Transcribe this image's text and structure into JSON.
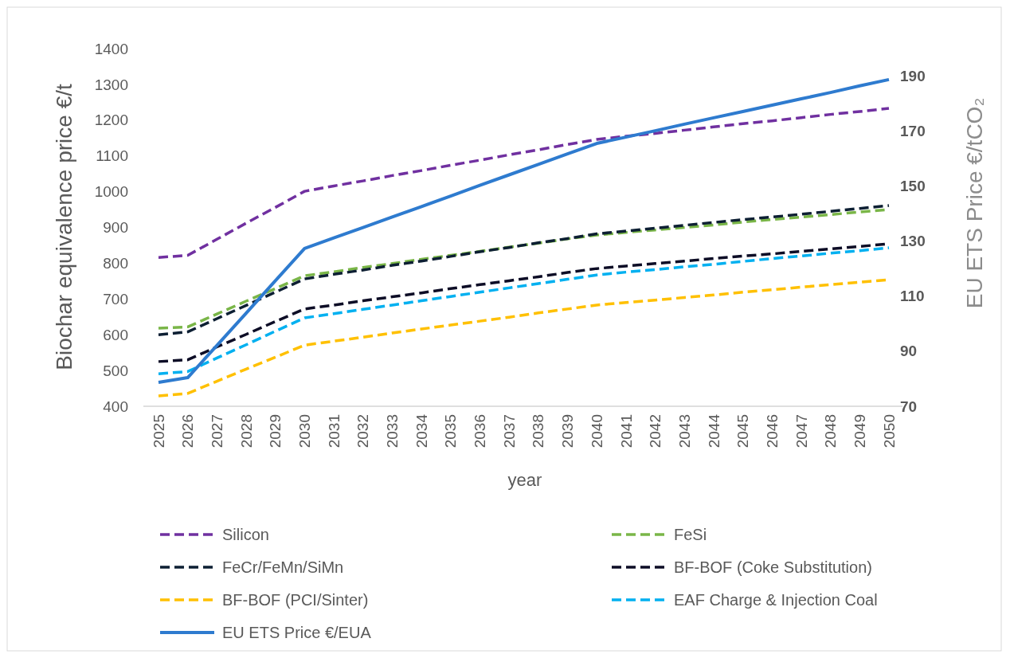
{
  "chart_data": {
    "type": "line",
    "xlabel": "year",
    "ylabel": "Biochar equivalence price €/t",
    "y2label": "EU ETS Price €/tCO₂",
    "categories": [
      "2025",
      "2026",
      "2027",
      "2028",
      "2029",
      "2030",
      "2031",
      "2032",
      "2033",
      "2034",
      "2035",
      "2036",
      "2037",
      "2038",
      "2039",
      "2040",
      "2041",
      "2042",
      "2043",
      "2044",
      "2045",
      "2046",
      "2047",
      "2048",
      "2049",
      "2050"
    ],
    "ylim": [
      400,
      1400
    ],
    "yticks": [
      400,
      500,
      600,
      700,
      800,
      900,
      1000,
      1100,
      1200,
      1300,
      1400
    ],
    "y2lim": [
      70,
      190
    ],
    "y2ticks": [
      70,
      90,
      110,
      130,
      150,
      170,
      190
    ],
    "grid": false,
    "legend": "bottom",
    "marker": "none",
    "series": [
      {
        "name": "Silicon",
        "color": "#7030a0",
        "line_style": "dashed",
        "values": [
          816,
          822,
          867,
          912,
          956,
          1001,
          1016,
          1030,
          1045,
          1059,
          1074,
          1088,
          1103,
          1117,
          1132,
          1146,
          1155,
          1163,
          1172,
          1181,
          1190,
          1198,
          1207,
          1216,
          1224,
          1233
        ]
      },
      {
        "name": "FeSi",
        "color": "#7ab648",
        "line_style": "dashed",
        "values": [
          618,
          622,
          658,
          694,
          729,
          765,
          776,
          788,
          799,
          811,
          822,
          833,
          845,
          856,
          868,
          879,
          886,
          893,
          900,
          907,
          915,
          922,
          929,
          936,
          943,
          950
        ]
      },
      {
        "name": "FeCr/FeMn/SiMn",
        "color": "#0d1f33",
        "line_style": "dashed",
        "values": [
          600,
          608,
          645,
          682,
          719,
          756,
          769,
          781,
          794,
          806,
          819,
          832,
          844,
          857,
          869,
          882,
          890,
          898,
          906,
          914,
          922,
          929,
          937,
          945,
          953,
          961
        ]
      },
      {
        "name": "BF-BOF (Coke Substitution)",
        "color": "#0d0d26",
        "line_style": "dashed",
        "values": [
          525,
          530,
          566,
          601,
          637,
          672,
          683,
          695,
          706,
          717,
          729,
          740,
          751,
          762,
          774,
          785,
          792,
          799,
          806,
          813,
          820,
          826,
          833,
          840,
          847,
          854
        ]
      },
      {
        "name": "BF-BOF (PCI/Sinter)",
        "color": "#ffc000",
        "line_style": "dashed",
        "values": [
          429,
          436,
          470,
          504,
          537,
          571,
          582,
          593,
          605,
          616,
          627,
          638,
          649,
          661,
          672,
          683,
          690,
          697,
          704,
          711,
          719,
          726,
          733,
          740,
          747,
          754
        ]
      },
      {
        "name": "EAF Charge & Injection Coal",
        "color": "#00b0f0",
        "line_style": "dashed",
        "values": [
          491,
          497,
          535,
          572,
          610,
          647,
          659,
          671,
          683,
          695,
          707,
          719,
          731,
          743,
          755,
          767,
          775,
          782,
          790,
          797,
          805,
          813,
          820,
          828,
          835,
          843
        ]
      },
      {
        "name": "EU ETS Price €/EUA",
        "color": "#2e7bcf",
        "line_style": "solid",
        "axis": "y2",
        "values": [
          78.7,
          80.4,
          92.1,
          103.8,
          115.6,
          127.3,
          131.1,
          134.9,
          138.7,
          142.5,
          146.3,
          150.2,
          154.0,
          157.8,
          161.6,
          165.4,
          167.7,
          170.0,
          172.4,
          174.7,
          177.0,
          179.3,
          181.6,
          183.9,
          186.3,
          188.6
        ]
      }
    ]
  }
}
